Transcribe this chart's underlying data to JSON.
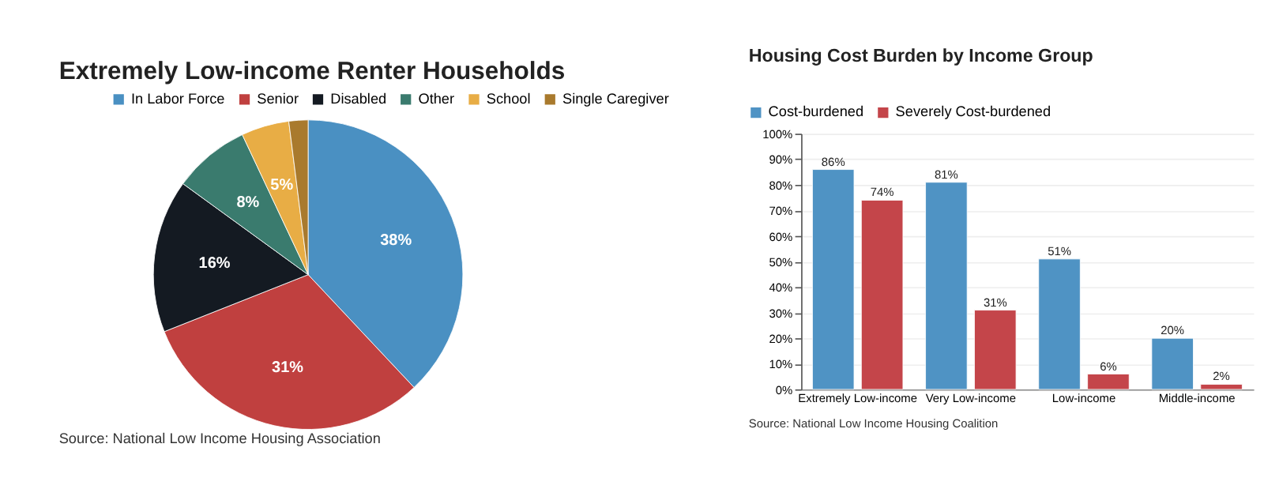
{
  "chart_data": [
    {
      "type": "pie",
      "title": "Extremely Low-income Renter Households",
      "categories": [
        "In Labor Force",
        "Senior",
        "Disabled",
        "Other",
        "School",
        "Single Caregiver"
      ],
      "values": [
        38,
        31,
        16,
        8,
        5,
        2
      ],
      "colors": [
        "#4a90c2",
        "#c0403f",
        "#141a22",
        "#3a7b6e",
        "#e8ad45",
        "#a97a2d"
      ],
      "value_labels": [
        "38%",
        "31%",
        "16%",
        "8%",
        "5%",
        null
      ],
      "legend": "top",
      "annotations": [
        "Source: National Low Income Housing Association"
      ]
    },
    {
      "type": "bar",
      "title": "Housing Cost Burden by Income Group",
      "categories": [
        "Extremely Low-income",
        "Very Low-income",
        "Low-income",
        "Middle-income"
      ],
      "series": [
        {
          "name": "Cost-burdened",
          "color": "#4f93c4",
          "values": [
            86,
            81,
            51,
            20
          ],
          "value_labels": [
            "86%",
            "81%",
            "51%",
            "20%"
          ]
        },
        {
          "name": "Severely Cost-burdened",
          "color": "#c4454a",
          "values": [
            74,
            31,
            6,
            2
          ],
          "value_labels": [
            "74%",
            "31%",
            "6%",
            "2%"
          ]
        }
      ],
      "ylim": [
        0,
        100
      ],
      "yticks": [
        {
          "value": 0,
          "label": "0%"
        },
        {
          "value": 10,
          "label": "10%"
        },
        {
          "value": 20,
          "label": "20%"
        },
        {
          "value": 30,
          "label": "30%"
        },
        {
          "value": 40,
          "label": "40%"
        },
        {
          "value": 50,
          "label": "50%"
        },
        {
          "value": 60,
          "label": "60%"
        },
        {
          "value": 70,
          "label": "70%"
        },
        {
          "value": 80,
          "label": "80%"
        },
        {
          "value": 90,
          "label": "90%"
        },
        {
          "value": 100,
          "label": "100%"
        }
      ],
      "grid": "y",
      "legend": "top left",
      "annotations": [
        "Source: National Low Income Housing Coalition"
      ]
    }
  ]
}
